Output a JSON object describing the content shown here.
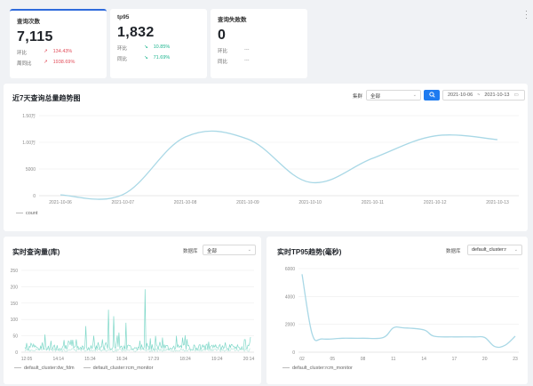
{
  "stats": [
    {
      "label": "查询次数",
      "value": "7,115",
      "rows": [
        {
          "label": "环比",
          "arrow": "↗",
          "value": "134.43%",
          "trend": "up"
        },
        {
          "label": "周同比",
          "arrow": "↗",
          "value": "1938.69%",
          "trend": "up"
        }
      ]
    },
    {
      "label": "tp95",
      "value": "1,832",
      "rows": [
        {
          "label": "环比",
          "arrow": "↘",
          "value": "10.85%",
          "trend": "down"
        },
        {
          "label": "同比",
          "arrow": "↘",
          "value": "71.69%",
          "trend": "down"
        }
      ]
    },
    {
      "label": "查询失败数",
      "value": "0",
      "rows": [
        {
          "label": "环比",
          "arrow": "",
          "value": "---",
          "trend": "none"
        },
        {
          "label": "同比",
          "arrow": "",
          "value": "---",
          "trend": "none"
        }
      ]
    }
  ],
  "trend": {
    "title": "近7天查询总量趋势图",
    "cluster_label": "集群",
    "cluster_value": "全部",
    "search_icon": "search-icon",
    "date_from": "2021-10-06",
    "date_sep": "~",
    "date_to": "2021-10-13",
    "calendar_icon": "calendar-icon",
    "legend": "count"
  },
  "realtime": {
    "title": "实时查询量(库)",
    "db_label": "数据库",
    "db_value": "全部",
    "legend": [
      "default_cluster:dw_fdm",
      "default_cluster:rcm_monitor"
    ]
  },
  "tp95": {
    "title": "实时TP95趋势(毫秒)",
    "db_label": "数据库",
    "db_value": "default_cluster:r",
    "legend": [
      "default_cluster:rcm_monitor"
    ]
  },
  "colors": {
    "line": "#a9d8e6",
    "teal": "#7fd8c9",
    "accent": "#1e7bf0"
  },
  "chart_data": [
    {
      "type": "line",
      "title": "近7天查询总量趋势图",
      "y_tick_labels": [
        "0",
        "5000",
        "1.00万",
        "1.50万"
      ],
      "x_tick_labels": [
        "2021-10-06",
        "2021-10-07",
        "2021-10-08",
        "2021-10-09",
        "2021-10-10",
        "2021-10-11",
        "2021-10-12",
        "2021-10-13"
      ],
      "categories": [
        "2021-10-06",
        "2021-10-07",
        "2021-10-08",
        "2021-10-09",
        "2021-10-10",
        "2021-10-11",
        "2021-10-12",
        "2021-10-13"
      ],
      "ylim": [
        0,
        15000
      ],
      "series": [
        {
          "name": "count",
          "values": [
            150,
            200,
            11000,
            10600,
            2500,
            7000,
            11200,
            10500
          ]
        }
      ]
    },
    {
      "type": "line",
      "title": "实时查询量(库)",
      "y_tick_labels": [
        "0",
        "50",
        "100",
        "150",
        "200",
        "250"
      ],
      "x_tick_labels": [
        "12:05",
        "14:14",
        "15:34",
        "16:34",
        "17:29",
        "18:24",
        "19:24",
        "20:14"
      ],
      "ylim": [
        0,
        250
      ],
      "series": [
        {
          "name": "default_cluster:dw_fdm"
        },
        {
          "name": "default_cluster:rcm_monitor"
        }
      ]
    },
    {
      "type": "line",
      "title": "实时TP95趋势(毫秒)",
      "y_tick_labels": [
        "0",
        "2000",
        "4000",
        "6000"
      ],
      "x_tick_labels": [
        "02",
        "05",
        "08",
        "11",
        "14",
        "17",
        "20",
        "23"
      ],
      "x": [
        2,
        3,
        4,
        6,
        8,
        10,
        11,
        12,
        14,
        15,
        17,
        19,
        20,
        21,
        22,
        23
      ],
      "ylim": [
        0,
        6000
      ],
      "series": [
        {
          "name": "default_cluster:rcm_monitor",
          "values": [
            5600,
            1300,
            950,
            1000,
            1000,
            1050,
            1750,
            1750,
            1600,
            1150,
            1100,
            1100,
            1050,
            400,
            500,
            1150
          ]
        }
      ]
    }
  ]
}
